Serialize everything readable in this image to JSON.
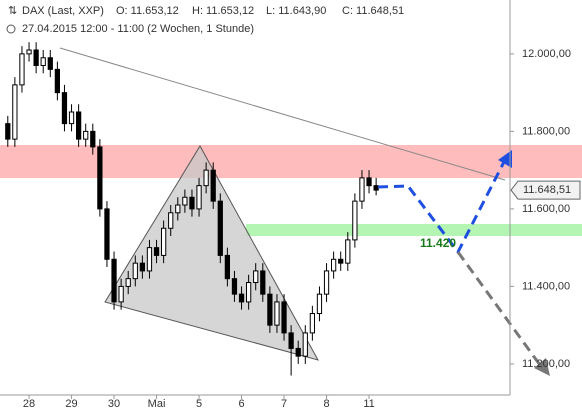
{
  "chart_data": {
    "type": "candlestick",
    "title": "DAX (Last, XXP)",
    "ohlc_labels": [
      "O: 11.653,12",
      "H: 11.653,12",
      "L: 11.643,90",
      "C: 11.648,51"
    ],
    "subtitle": "27.04.2015 12:00 - 11:00 (2 Wochen, 1 Stunde)",
    "x": [
      0,
      1,
      2,
      3,
      4,
      5,
      6,
      7,
      8,
      9,
      10,
      11,
      12,
      13,
      14,
      15,
      16,
      17,
      18,
      19,
      20,
      21,
      22,
      23,
      24,
      25,
      26,
      27,
      28,
      29,
      30,
      31,
      32,
      33,
      34,
      35,
      36,
      37,
      38,
      39,
      40,
      41,
      42,
      43,
      44,
      45,
      46,
      47,
      48,
      49,
      50,
      51,
      52
    ],
    "open": [
      11820,
      11780,
      11920,
      12000,
      12010,
      11970,
      11990,
      11960,
      11900,
      11820,
      11850,
      11780,
      11800,
      11760,
      11600,
      11470,
      11360,
      11400,
      11420,
      11460,
      11440,
      11500,
      11480,
      11550,
      11590,
      11610,
      11630,
      11600,
      11660,
      11700,
      11620,
      11480,
      11420,
      11380,
      11360,
      11410,
      11440,
      11380,
      11300,
      11360,
      11280,
      11240,
      11220,
      11280,
      11330,
      11380,
      11440,
      11470,
      11460,
      11520,
      11620,
      11680,
      11660
    ],
    "high": [
      11840,
      11940,
      12020,
      12030,
      12030,
      12010,
      12010,
      11980,
      11920,
      11870,
      11870,
      11820,
      11820,
      11780,
      11620,
      11490,
      11420,
      11440,
      11480,
      11480,
      11520,
      11520,
      11570,
      11610,
      11630,
      11650,
      11650,
      11680,
      11720,
      11720,
      11640,
      11500,
      11440,
      11400,
      11430,
      11460,
      11460,
      11400,
      11380,
      11380,
      11300,
      11260,
      11300,
      11350,
      11400,
      11460,
      11490,
      11490,
      11540,
      11640,
      11700,
      11700,
      11680
    ],
    "low": [
      11760,
      11760,
      11900,
      11980,
      11950,
      11950,
      11940,
      11880,
      11800,
      11800,
      11760,
      11760,
      11740,
      11580,
      11450,
      11340,
      11340,
      11380,
      11400,
      11420,
      11420,
      11460,
      11460,
      11530,
      11570,
      11590,
      11580,
      11580,
      11640,
      11600,
      11460,
      11400,
      11360,
      11340,
      11340,
      11390,
      11360,
      11280,
      11280,
      11260,
      11170,
      11200,
      11200,
      11260,
      11310,
      11360,
      11420,
      11440,
      11440,
      11500,
      11600,
      11640,
      11635
    ],
    "close": [
      11780,
      11920,
      12000,
      12010,
      11970,
      11990,
      11960,
      11900,
      11820,
      11850,
      11780,
      11800,
      11760,
      11600,
      11470,
      11360,
      11400,
      11420,
      11460,
      11440,
      11500,
      11480,
      11550,
      11590,
      11610,
      11630,
      11600,
      11660,
      11700,
      11620,
      11480,
      11420,
      11380,
      11360,
      11410,
      11440,
      11380,
      11300,
      11360,
      11280,
      11240,
      11220,
      11280,
      11330,
      11380,
      11440,
      11470,
      11460,
      11520,
      11620,
      11680,
      11660,
      11648.51
    ],
    "up_color": "#ffffff",
    "down_color": "#000000",
    "edge_color": "#000000",
    "xlim": [
      -1.1,
      70.9
    ],
    "xticks": [
      {
        "value": 3,
        "label": "28"
      },
      {
        "value": 9,
        "label": "29"
      },
      {
        "value": 15,
        "label": "30"
      },
      {
        "value": 21,
        "label": "Mai"
      },
      {
        "value": 27,
        "label": "5"
      },
      {
        "value": 33,
        "label": "6"
      },
      {
        "value": 39,
        "label": "7"
      },
      {
        "value": 45,
        "label": "8"
      },
      {
        "value": 51,
        "label": "11"
      }
    ],
    "ylim": [
      11094,
      12139
    ],
    "yticks": [
      {
        "value": 11200,
        "label": "11.200,00"
      },
      {
        "value": 11400,
        "label": "11.400,00"
      },
      {
        "value": 11600,
        "label": "11.600,00"
      },
      {
        "value": 11800,
        "label": "11.800,00"
      },
      {
        "value": 12000,
        "label": "12.000,00"
      }
    ],
    "last_price": {
      "value": 11648.51,
      "label": "11.648,51"
    },
    "annotation": "11.420"
  }
}
